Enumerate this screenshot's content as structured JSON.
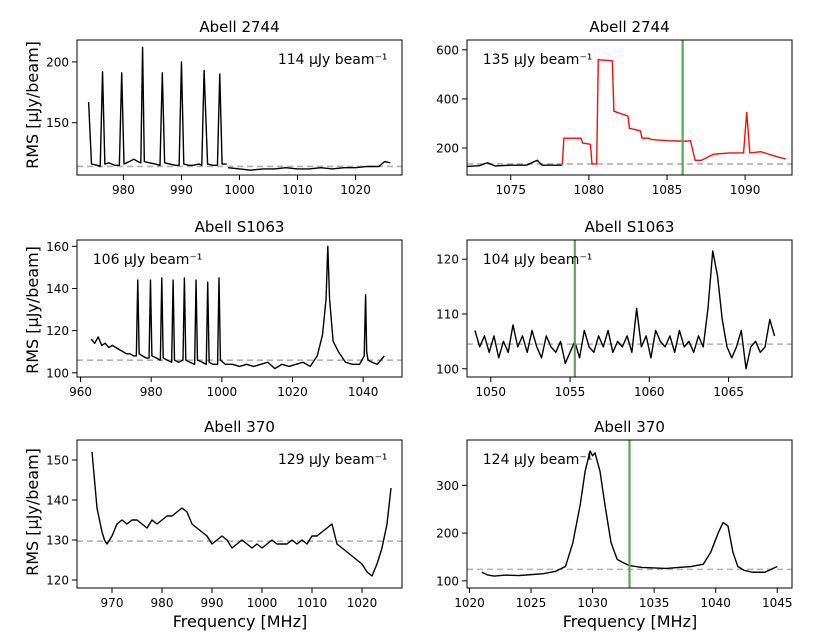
{
  "figure": {
    "ylabel": "RMS [μJy/beam]",
    "xlabel": "Frequency [MHz]"
  },
  "chart_data": [
    {
      "type": "line",
      "title": "Abell 2744",
      "annotation": "114 μJy beam⁻¹",
      "xlim": [
        972,
        1028
      ],
      "ylim": [
        107,
        218
      ],
      "xticks": [
        980,
        990,
        1000,
        1010,
        1020
      ],
      "yticks": [
        150,
        200
      ],
      "baseline": 114,
      "series": [
        {
          "color": "#000000",
          "segments": [
            {
              "x": [
                974,
                974.5,
                975.5,
                976,
                976.4,
                976.8,
                977.5,
                978.5,
                979.3,
                979.7,
                980.1,
                981,
                981.8,
                982.5,
                983,
                983.3,
                983.6,
                984.5,
                985.5,
                986.3,
                986.7,
                987.1,
                988,
                989,
                989.6,
                990,
                990.4,
                991.3,
                992,
                993,
                993.5,
                993.9,
                994.5,
                995.5,
                996.2,
                996.6,
                997,
                997.8
              ],
              "y": [
                167,
                116,
                115,
                114,
                192,
                116,
                117,
                115,
                115,
                191,
                116,
                118,
                120,
                118,
                117,
                212,
                118,
                117,
                116,
                115,
                191,
                117,
                116,
                115,
                115,
                200,
                116,
                115,
                115,
                116,
                115,
                193,
                116,
                115,
                115,
                190,
                116,
                116
              ]
            },
            {
              "x": [
                998,
                1000,
                1002,
                1004,
                1006,
                1008,
                1010,
                1012,
                1014,
                1016,
                1018,
                1020,
                1022,
                1024,
                1025,
                1026
              ],
              "y": [
                113,
                112,
                111,
                112,
                112,
                113,
                112,
                112,
                113,
                112,
                113,
                113,
                114,
                114,
                118,
                117
              ]
            }
          ]
        }
      ]
    },
    {
      "type": "line",
      "title": "Abell 2744",
      "annotation": "135 μJy beam⁻¹",
      "xlim": [
        1072.2,
        1093
      ],
      "ylim": [
        90,
        640
      ],
      "xticks": [
        1075,
        1080,
        1085,
        1090
      ],
      "yticks": [
        200,
        400,
        600
      ],
      "baseline": 135,
      "vline": 1086,
      "vline_color": "#5aa75a",
      "series": [
        {
          "color": "#000000",
          "segments": [
            {
              "x": [
                1072.2,
                1073,
                1073.5,
                1074,
                1075,
                1076,
                1076.7,
                1077,
                1078,
                1078.3
              ],
              "y": [
                125,
                128,
                140,
                127,
                130,
                130,
                150,
                130,
                130,
                130
              ]
            }
          ]
        },
        {
          "color": "#e8120c",
          "segments": [
            {
              "x": [
                1078.3,
                1078.4,
                1079.5,
                1079.6,
                1080.1,
                1080.2,
                1080.5,
                1080.6,
                1081.5,
                1081.6,
                1082.5,
                1082.6,
                1083.3,
                1083.4,
                1083.8,
                1084,
                1085,
                1086,
                1086.3,
                1086.5,
                1086.8,
                1087.2,
                1088,
                1089,
                1089.9,
                1090.1,
                1090.3,
                1091,
                1092,
                1092.6
              ],
              "y": [
                135,
                240,
                240,
                220,
                215,
                135,
                135,
                560,
                555,
                350,
                330,
                280,
                270,
                240,
                240,
                235,
                230,
                228,
                228,
                230,
                150,
                150,
                175,
                180,
                180,
                345,
                180,
                185,
                165,
                155
              ]
            }
          ]
        }
      ]
    },
    {
      "type": "line",
      "title": "Abell S1063",
      "annotation": "106 μJy beam⁻¹",
      "xlim": [
        959,
        1051
      ],
      "ylim": [
        98,
        163
      ],
      "xticks": [
        960,
        980,
        1000,
        1020,
        1040
      ],
      "yticks": [
        100,
        120,
        140,
        160
      ],
      "baseline": 106,
      "series": [
        {
          "color": "#000000",
          "segments": [
            {
              "x": [
                963,
                964,
                965,
                966,
                967,
                968,
                969,
                970,
                971,
                972,
                973,
                974,
                975,
                975.8,
                976.2,
                976.6,
                977.5,
                978.6,
                979.4,
                979.8,
                980.2,
                981.5,
                982.6,
                983,
                983.4,
                984.5,
                985.8,
                986.2,
                986.6,
                987.8,
                989,
                989.4,
                989.8,
                991,
                992.3,
                992.7,
                993.1,
                994.5,
                995.6,
                996,
                996.4,
                997.5,
                998.8,
                999.2,
                999.6,
                1001,
                1003,
                1005,
                1007,
                1009,
                1011,
                1013,
                1015,
                1017,
                1019,
                1021,
                1023,
                1025,
                1027,
                1028.5,
                1029.5,
                1030,
                1030.5,
                1031.5,
                1033,
                1035,
                1037,
                1039,
                1040.3,
                1040.7,
                1041,
                1041.4,
                1042.5,
                1044,
                1046
              ],
              "y": [
                116,
                114,
                117,
                113,
                114,
                112,
                113,
                112,
                111,
                110,
                109,
                109,
                108,
                108,
                144,
                109,
                108,
                107,
                107,
                144,
                108,
                107,
                106,
                145,
                107,
                106,
                105,
                144,
                106,
                105,
                106,
                145,
                106,
                105,
                104,
                144,
                106,
                105,
                104,
                143,
                105,
                104,
                104,
                145,
                106,
                104,
                104,
                103,
                104,
                103,
                104,
                105,
                102,
                104,
                103,
                104,
                105,
                103,
                108,
                118,
                135,
                160,
                135,
                115,
                110,
                105,
                104,
                104,
                108,
                137,
                110,
                106,
                105,
                104,
                108
              ]
            }
          ]
        }
      ]
    },
    {
      "type": "line",
      "title": "Abell S1063",
      "annotation": "104 μJy beam⁻¹",
      "xlim": [
        1048.5,
        1069
      ],
      "ylim": [
        98.5,
        123.5
      ],
      "xticks": [
        1050,
        1055,
        1060,
        1065
      ],
      "yticks": [
        100,
        110,
        120
      ],
      "baseline": 104.5,
      "vline": 1055.3,
      "vline_color": "#5aa75a",
      "series": [
        {
          "color": "#000000",
          "segments": [
            {
              "x": [
                1049,
                1049.3,
                1049.6,
                1049.9,
                1050.2,
                1050.5,
                1050.8,
                1051.1,
                1051.4,
                1051.7,
                1052,
                1052.3,
                1052.6,
                1052.9,
                1053.2,
                1053.5,
                1053.8,
                1054.1,
                1054.4,
                1054.7,
                1055,
                1055.3,
                1055.6,
                1055.9,
                1056.2,
                1056.5,
                1056.8,
                1057.1,
                1057.4,
                1057.7,
                1058,
                1058.3,
                1058.6,
                1058.9,
                1059.2,
                1059.5,
                1059.8,
                1060.1,
                1060.4,
                1060.7,
                1061,
                1061.3,
                1061.6,
                1061.9,
                1062.2,
                1062.5,
                1062.8,
                1063.1,
                1063.4,
                1063.7,
                1064,
                1064.3,
                1064.6,
                1064.9,
                1065.2,
                1065.5,
                1065.8,
                1066.1,
                1066.4,
                1066.7,
                1067,
                1067.3,
                1067.6,
                1067.9
              ],
              "y": [
                107,
                104,
                106,
                103,
                106,
                102,
                105,
                103,
                108,
                104,
                106,
                103,
                107,
                104,
                102,
                106,
                104,
                103,
                105,
                101,
                103,
                105,
                102,
                107,
                104,
                103,
                106,
                104,
                107,
                103,
                105,
                104,
                106,
                103,
                111,
                104,
                106,
                102,
                107,
                105,
                104,
                106,
                103,
                107,
                104,
                105,
                103,
                106,
                104,
                111,
                121.5,
                117,
                109,
                104,
                102,
                104,
                107,
                100,
                104,
                105,
                103,
                104,
                109,
                106
              ]
            }
          ]
        }
      ]
    },
    {
      "type": "line",
      "title": "Abell 370",
      "annotation": "129 μJy beam⁻¹",
      "xlim": [
        963,
        1028
      ],
      "ylim": [
        118,
        155
      ],
      "xticks": [
        970,
        980,
        990,
        1000,
        1010,
        1020
      ],
      "yticks": [
        120,
        130,
        140,
        150
      ],
      "baseline": 129.7,
      "series": [
        {
          "color": "#000000",
          "segments": [
            {
              "x": [
                966,
                966.5,
                967,
                967.5,
                968,
                968.5,
                969,
                970,
                971,
                972,
                973,
                974,
                975,
                976,
                977,
                978,
                979,
                980,
                981,
                982,
                983,
                984,
                985,
                986,
                987,
                988,
                989,
                990,
                991,
                992,
                993,
                994,
                995,
                996,
                997,
                998,
                999,
                1000,
                1001,
                1002,
                1003,
                1004,
                1005,
                1006,
                1007,
                1008,
                1009,
                1010,
                1011,
                1012,
                1013,
                1014,
                1015,
                1016,
                1017,
                1018,
                1019,
                1020,
                1021,
                1022,
                1023,
                1024,
                1025,
                1025.8
              ],
              "y": [
                152,
                145,
                138,
                135,
                132,
                130,
                129,
                131,
                134,
                135,
                134,
                135,
                135,
                134,
                133,
                135,
                134,
                135,
                136,
                136,
                137,
                138,
                137,
                134,
                133,
                132,
                131,
                129,
                130,
                131,
                130,
                128,
                129,
                130,
                129,
                128,
                129,
                128,
                129,
                130,
                129,
                129,
                129,
                130,
                129,
                130,
                129,
                131,
                131,
                132,
                133,
                134,
                129,
                128,
                127,
                126,
                125,
                124,
                122,
                121,
                124,
                128,
                134,
                143
              ]
            }
          ]
        }
      ]
    },
    {
      "type": "line",
      "title": "Abell 370",
      "annotation": "124 μJy beam⁻¹",
      "xlim": [
        1019.8,
        1046.2
      ],
      "ylim": [
        85,
        395
      ],
      "xticks": [
        1020,
        1025,
        1030,
        1035,
        1040,
        1045
      ],
      "yticks": [
        100,
        200,
        300
      ],
      "baseline": 124,
      "vline": 1033,
      "vline_color": "#5aa75a",
      "series": [
        {
          "color": "#000000",
          "segments": [
            {
              "x": [
                1021,
                1021.5,
                1022,
                1023,
                1024,
                1025,
                1026,
                1027,
                1027.8,
                1028.4,
                1029,
                1029.4,
                1029.8,
                1030,
                1030.2,
                1030.6,
                1031,
                1031.5,
                1032,
                1032.5,
                1033,
                1034,
                1035,
                1036,
                1037,
                1038,
                1039,
                1039.6,
                1040.2,
                1040.6,
                1041,
                1041.4,
                1041.8,
                1042.3,
                1043,
                1044,
                1045
              ],
              "y": [
                118,
                112,
                110,
                112,
                111,
                113,
                115,
                120,
                130,
                180,
                260,
                330,
                372,
                362,
                368,
                330,
                260,
                180,
                145,
                138,
                132,
                128,
                127,
                126,
                128,
                130,
                135,
                160,
                200,
                222,
                215,
                160,
                130,
                122,
                118,
                118,
                130
              ]
            }
          ]
        }
      ]
    }
  ]
}
